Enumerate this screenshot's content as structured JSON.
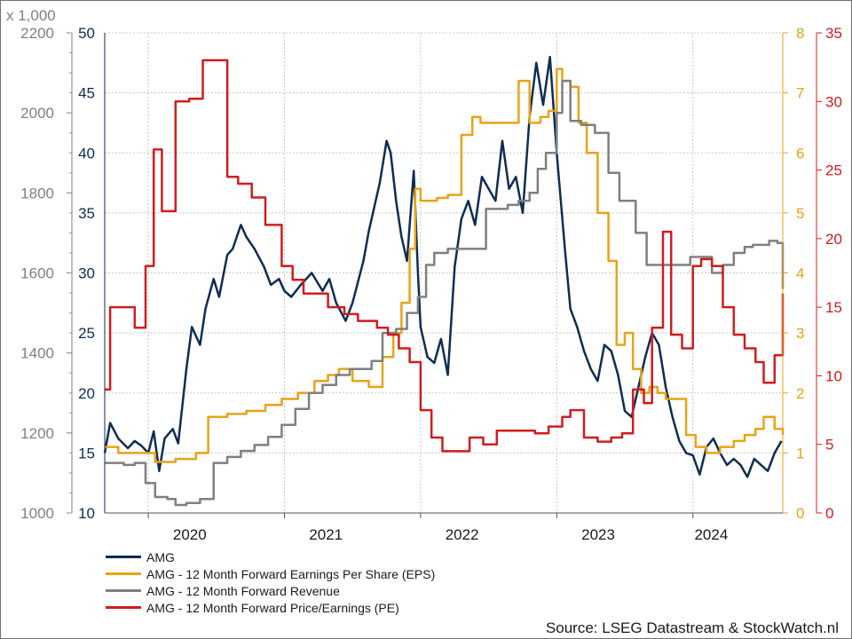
{
  "chart_data": {
    "type": "line",
    "source": "Source: LSEG Datastream & StockWatch.nl",
    "x_labels": [
      "2020",
      "2021",
      "2022",
      "2023",
      "2024"
    ],
    "axes": {
      "revenue": {
        "label": "x 1,000",
        "min": 1000,
        "max": 2200,
        "ticks": [
          1000,
          1200,
          1400,
          1600,
          1800,
          2000,
          2200
        ],
        "color": "#7f7f7f"
      },
      "price": {
        "min": 10,
        "max": 50,
        "ticks": [
          10,
          15,
          20,
          25,
          30,
          35,
          40,
          45,
          50
        ],
        "color": "#0d2d52"
      },
      "eps": {
        "min": 0,
        "max": 8,
        "ticks": [
          0,
          1,
          2,
          3,
          4,
          5,
          6,
          7,
          8
        ],
        "color": "#e8a317"
      },
      "pe": {
        "min": 0,
        "max": 35,
        "ticks": [
          0,
          5,
          10,
          15,
          20,
          25,
          30,
          35
        ],
        "color": "#d01c1f"
      }
    },
    "series": [
      {
        "name": "AMG",
        "axis": "price",
        "color": "#0d2d52",
        "step": false,
        "x": [
          2019.68,
          2019.72,
          2019.78,
          2019.85,
          2019.9,
          2019.95,
          2020.0,
          2020.04,
          2020.08,
          2020.12,
          2020.18,
          2020.22,
          2020.28,
          2020.32,
          2020.38,
          2020.42,
          2020.48,
          2020.52,
          2020.58,
          2020.62,
          2020.68,
          2020.72,
          2020.78,
          2020.85,
          2020.9,
          2020.96,
          2021.0,
          2021.05,
          2021.12,
          2021.2,
          2021.28,
          2021.33,
          2021.38,
          2021.45,
          2021.5,
          2021.58,
          2021.62,
          2021.7,
          2021.75,
          2021.78,
          2021.82,
          2021.86,
          2021.9,
          2021.95,
          2021.98,
          2022.0,
          2022.05,
          2022.1,
          2022.15,
          2022.2,
          2022.25,
          2022.3,
          2022.35,
          2022.4,
          2022.45,
          2022.5,
          2022.55,
          2022.6,
          2022.65,
          2022.7,
          2022.75,
          2022.8,
          2022.85,
          2022.9,
          2022.95,
          2023.0,
          2023.03,
          2023.06,
          2023.1,
          2023.15,
          2023.2,
          2023.25,
          2023.3,
          2023.35,
          2023.4,
          2023.45,
          2023.5,
          2023.55,
          2023.6,
          2023.65,
          2023.7,
          2023.75,
          2023.8,
          2023.85,
          2023.9,
          2023.95,
          2024.0,
          2024.05,
          2024.1,
          2024.15,
          2024.2,
          2024.25,
          2024.3,
          2024.35,
          2024.4,
          2024.45,
          2024.5,
          2024.55,
          2024.6,
          2024.65
        ],
        "y": [
          15,
          17.5,
          16.2,
          15.4,
          16,
          15.6,
          15,
          16.8,
          13.5,
          16.2,
          17,
          15.8,
          22,
          25.5,
          24,
          27,
          29.5,
          28,
          31.5,
          32,
          34,
          33,
          32,
          30.5,
          29,
          29.5,
          28.5,
          28,
          29,
          30,
          28.5,
          29.5,
          27.5,
          26,
          27.5,
          31,
          33.5,
          37.5,
          41,
          40,
          36,
          33,
          31,
          38.5,
          30,
          25.5,
          23,
          22.5,
          24.5,
          21.5,
          30.5,
          34.5,
          36,
          34,
          38,
          37,
          36,
          41,
          37,
          38,
          35,
          43,
          47.5,
          44,
          48,
          40,
          36,
          32,
          27,
          25.5,
          23.5,
          22,
          21,
          24,
          23.5,
          21.5,
          18.5,
          18,
          20.5,
          23,
          25,
          24,
          20.5,
          18,
          16,
          15,
          14.8,
          13.2,
          15.5,
          16.2,
          15,
          14,
          14.5,
          14,
          13,
          14.5,
          14,
          13.5,
          15,
          16
        ]
      },
      {
        "name": "AMG - 12 Month Forward Earnings Per Share (EPS)",
        "axis": "eps",
        "color": "#e8a317",
        "step": true,
        "x": [
          2019.68,
          2019.78,
          2019.95,
          2020.05,
          2020.2,
          2020.35,
          2020.44,
          2020.58,
          2020.72,
          2020.86,
          2020.98,
          2021.1,
          2021.22,
          2021.32,
          2021.4,
          2021.5,
          2021.62,
          2021.72,
          2021.8,
          2021.86,
          2021.92,
          2021.96,
          2022.0,
          2022.06,
          2022.12,
          2022.2,
          2022.3,
          2022.38,
          2022.44,
          2022.5,
          2022.62,
          2022.72,
          2022.8,
          2022.88,
          2022.94,
          2023.0,
          2023.04,
          2023.1,
          2023.16,
          2023.22,
          2023.3,
          2023.38,
          2023.44,
          2023.5,
          2023.56,
          2023.62,
          2023.68,
          2023.74,
          2023.8,
          2023.88,
          2023.95,
          2024.02,
          2024.1,
          2024.2,
          2024.3,
          2024.38,
          2024.46,
          2024.52,
          2024.6,
          2024.66
        ],
        "y": [
          1.1,
          1.0,
          1.0,
          0.85,
          0.9,
          1.0,
          1.6,
          1.65,
          1.7,
          1.8,
          1.9,
          2.0,
          2.2,
          2.3,
          2.4,
          2.2,
          2.1,
          2.6,
          3.0,
          3.5,
          4.4,
          5.4,
          5.2,
          5.2,
          5.25,
          5.3,
          6.3,
          6.6,
          6.5,
          6.5,
          6.5,
          7.2,
          6.5,
          6.6,
          6.7,
          7.4,
          7.2,
          7.1,
          6.5,
          6.0,
          5.0,
          4.2,
          2.8,
          3.0,
          2.4,
          2.0,
          2.1,
          2.0,
          1.9,
          1.9,
          1.3,
          1.1,
          1.0,
          1.1,
          1.2,
          1.3,
          1.4,
          1.6,
          1.4,
          1.3
        ]
      },
      {
        "name": "AMG - 12 Month Forward Revenue",
        "axis": "revenue",
        "color": "#7f7f7f",
        "step": true,
        "x": [
          2019.68,
          2019.82,
          2019.9,
          2019.98,
          2020.05,
          2020.14,
          2020.2,
          2020.28,
          2020.38,
          2020.48,
          2020.58,
          2020.68,
          2020.78,
          2020.88,
          2020.98,
          2021.08,
          2021.18,
          2021.28,
          2021.38,
          2021.48,
          2021.56,
          2021.64,
          2021.72,
          2021.82,
          2021.9,
          2021.98,
          2022.04,
          2022.1,
          2022.2,
          2022.3,
          2022.38,
          2022.48,
          2022.56,
          2022.64,
          2022.72,
          2022.8,
          2022.86,
          2022.92,
          2023.0,
          2023.04,
          2023.1,
          2023.18,
          2023.28,
          2023.38,
          2023.46,
          2023.52,
          2023.58,
          2023.66,
          2023.74,
          2023.82,
          2023.9,
          2023.98,
          2024.06,
          2024.14,
          2024.22,
          2024.3,
          2024.38,
          2024.44,
          2024.5,
          2024.56,
          2024.62,
          2024.66
        ],
        "y": [
          1125,
          1120,
          1125,
          1075,
          1040,
          1035,
          1020,
          1025,
          1035,
          1125,
          1140,
          1155,
          1170,
          1190,
          1220,
          1260,
          1300,
          1320,
          1345,
          1360,
          1360,
          1380,
          1450,
          1460,
          1500,
          1540,
          1620,
          1650,
          1660,
          1660,
          1660,
          1760,
          1760,
          1770,
          1780,
          1800,
          1860,
          1900,
          2000,
          2080,
          1980,
          1970,
          1950,
          1850,
          1780,
          1780,
          1700,
          1620,
          1620,
          1620,
          1620,
          1640,
          1640,
          1600,
          1620,
          1650,
          1665,
          1670,
          1670,
          1680,
          1675,
          1560
        ]
      },
      {
        "name": "AMG - 12 Month Forward Price/Earnings (PE)",
        "axis": "pe",
        "color": "#d01c1f",
        "step": true,
        "x": [
          2019.68,
          2019.72,
          2019.8,
          2019.9,
          2019.98,
          2020.04,
          2020.1,
          2020.2,
          2020.3,
          2020.4,
          2020.5,
          2020.58,
          2020.66,
          2020.76,
          2020.86,
          2020.98,
          2021.06,
          2021.14,
          2021.22,
          2021.32,
          2021.44,
          2021.54,
          2021.6,
          2021.68,
          2021.76,
          2021.84,
          2021.92,
          2022.0,
          2022.08,
          2022.16,
          2022.26,
          2022.36,
          2022.46,
          2022.56,
          2022.64,
          2022.74,
          2022.84,
          2022.94,
          2023.04,
          2023.1,
          2023.2,
          2023.3,
          2023.4,
          2023.48,
          2023.56,
          2023.64,
          2023.7,
          2023.78,
          2023.84,
          2023.92,
          2024.0,
          2024.06,
          2024.14,
          2024.22,
          2024.3,
          2024.38,
          2024.46,
          2024.52,
          2024.6,
          2024.66
        ],
        "y": [
          9,
          15,
          15,
          13.5,
          18,
          26.5,
          22,
          30,
          30.2,
          33,
          33,
          24.5,
          24,
          23,
          21,
          18,
          17,
          16,
          16,
          15,
          14.5,
          14,
          14,
          13.5,
          13,
          12,
          11,
          7.5,
          5.5,
          4.5,
          4.5,
          5.5,
          5,
          6,
          6,
          6,
          5.8,
          6.3,
          7,
          7.5,
          5.5,
          5.2,
          5.5,
          5.8,
          9,
          8,
          13.5,
          20.5,
          13,
          12,
          18,
          18.5,
          18,
          15,
          13,
          12,
          11,
          9.5,
          11.5,
          16
        ]
      }
    ]
  }
}
